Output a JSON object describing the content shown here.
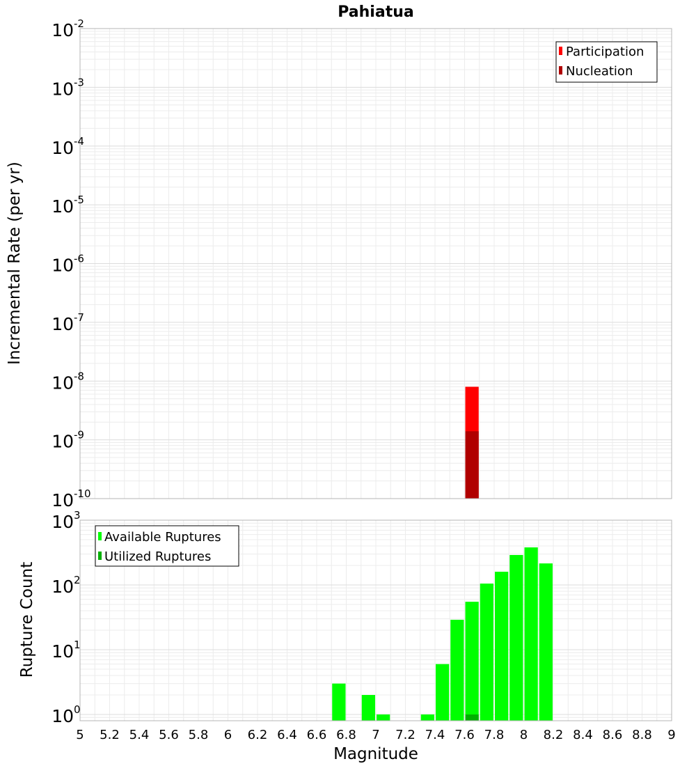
{
  "chart_data": [
    {
      "type": "bar",
      "title": "Pahiatua",
      "xlabel": "",
      "ylabel": "Incremental Rate (per yr)",
      "y_scale": "log",
      "xlim": [
        5,
        9
      ],
      "ylim": [
        1e-10,
        0.01
      ],
      "y_tick_exponents": [
        -10,
        -9,
        -8,
        -7,
        -6,
        -5,
        -4,
        -3,
        -2
      ],
      "grid": true,
      "legend_placement": "top-right",
      "bin_width": 0.1,
      "series": [
        {
          "name": "Participation",
          "color": "#ff0000",
          "points": [
            {
              "x": 7.65,
              "y": 8e-09
            }
          ]
        },
        {
          "name": "Nucleation",
          "color": "#b00000",
          "points": [
            {
              "x": 7.65,
              "y": 1.4e-09
            }
          ]
        }
      ]
    },
    {
      "type": "bar",
      "title": "",
      "xlabel": "Magnitude",
      "ylabel": "Rupture Count",
      "y_scale": "log",
      "xlim": [
        5,
        9
      ],
      "ylim": [
        0.8,
        1000
      ],
      "y_tick_exponents": [
        0,
        1,
        2,
        3
      ],
      "x_ticks": [
        "5",
        "5.2",
        "5.4",
        "5.6",
        "5.8",
        "6",
        "6.2",
        "6.4",
        "6.6",
        "6.8",
        "7",
        "7.2",
        "7.4",
        "7.6",
        "7.8",
        "8",
        "8.2",
        "8.4",
        "8.6",
        "8.8",
        "9"
      ],
      "grid": true,
      "legend_placement": "top-left",
      "bin_width": 0.1,
      "series": [
        {
          "name": "Available Ruptures",
          "color": "#00ff00",
          "points": [
            {
              "x": 6.75,
              "y": 3
            },
            {
              "x": 6.95,
              "y": 2
            },
            {
              "x": 7.05,
              "y": 1
            },
            {
              "x": 7.35,
              "y": 1
            },
            {
              "x": 7.45,
              "y": 6
            },
            {
              "x": 7.55,
              "y": 29
            },
            {
              "x": 7.65,
              "y": 55
            },
            {
              "x": 7.75,
              "y": 105
            },
            {
              "x": 7.85,
              "y": 160
            },
            {
              "x": 7.95,
              "y": 290
            },
            {
              "x": 8.05,
              "y": 380
            },
            {
              "x": 8.15,
              "y": 215
            }
          ]
        },
        {
          "name": "Utilized Ruptures",
          "color": "#00b000",
          "points": [
            {
              "x": 7.65,
              "y": 1
            }
          ]
        }
      ]
    }
  ]
}
